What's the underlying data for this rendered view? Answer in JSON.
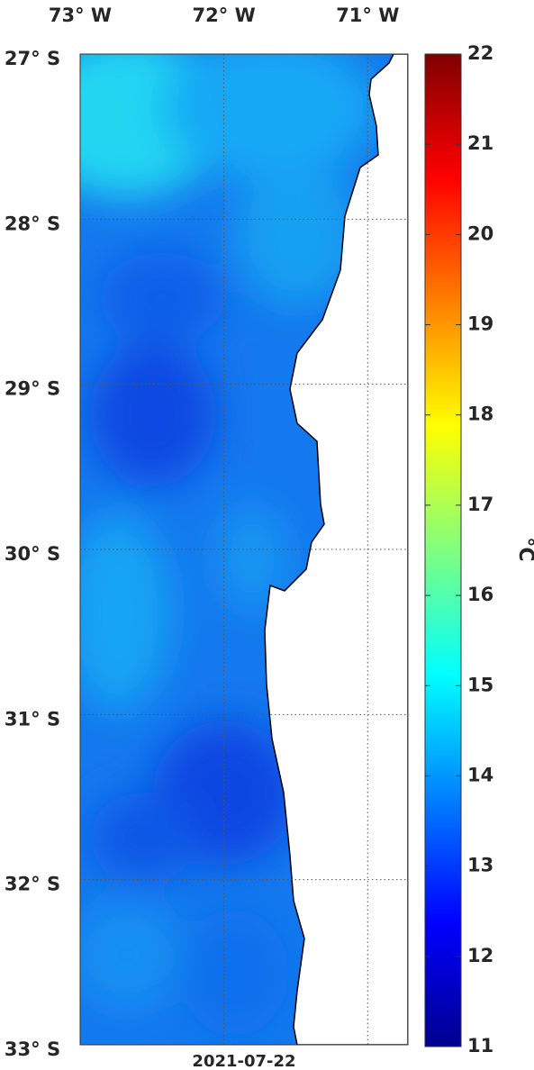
{
  "map": {
    "xlim": [
      -73,
      -70.72
    ],
    "ylim": [
      -27,
      -33
    ],
    "lon_ticks": [
      {
        "value": -73,
        "label": "73° W"
      },
      {
        "value": -72,
        "label": "72° W"
      },
      {
        "value": -71,
        "label": "71° W"
      }
    ],
    "lat_ticks": [
      {
        "value": -27,
        "label": "27° S"
      },
      {
        "value": -28,
        "label": "28° S"
      },
      {
        "value": -29,
        "label": "29° S"
      },
      {
        "value": -30,
        "label": "30° S"
      },
      {
        "value": -31,
        "label": "31° S"
      },
      {
        "value": -32,
        "label": "32° S"
      },
      {
        "value": -33,
        "label": "33° S"
      }
    ],
    "date": "2021-07-22",
    "colorbar": {
      "lim": [
        11,
        22
      ],
      "ticks": [
        11,
        12,
        13,
        14,
        15,
        16,
        17,
        18,
        19,
        20,
        21,
        22
      ],
      "label": "°C"
    }
  }
}
